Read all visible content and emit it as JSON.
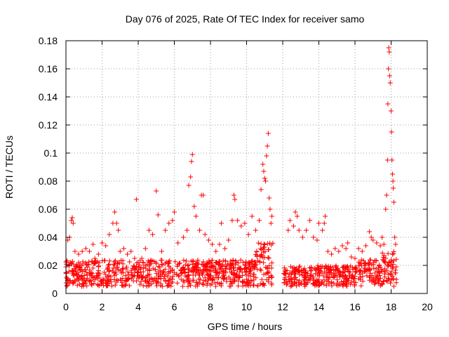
{
  "chart_data": {
    "type": "scatter",
    "title": "Day 076 of 2025, Rate Of TEC Index for receiver samo",
    "xlabel": "GPS time / hours",
    "ylabel": "ROTI / TECUs",
    "xlim": [
      0,
      20
    ],
    "ylim": [
      0,
      0.18
    ],
    "x_ticks": [
      0,
      2,
      4,
      6,
      8,
      10,
      12,
      14,
      16,
      18,
      20
    ],
    "x_tick_labels": [
      "0",
      "2",
      "4",
      "6",
      "8",
      "10",
      "12",
      "14",
      "16",
      "18",
      "20"
    ],
    "y_ticks": [
      0,
      0.02,
      0.04,
      0.06,
      0.08,
      0.1,
      0.12,
      0.14,
      0.16,
      0.18
    ],
    "y_tick_labels": [
      "0",
      "0.02",
      "0.04",
      "0.06",
      "0.08",
      "0.1",
      "0.12",
      "0.14",
      "0.16",
      "0.18"
    ],
    "grid": true,
    "marker": "+",
    "color": "#ff0000",
    "series": [
      {
        "name": "ROTI",
        "points": [
          [
            0.1,
            0.038
          ],
          [
            0.2,
            0.04
          ],
          [
            0.3,
            0.052
          ],
          [
            0.35,
            0.054
          ],
          [
            0.4,
            0.05
          ],
          [
            0.5,
            0.03
          ],
          [
            0.7,
            0.028
          ],
          [
            0.9,
            0.03
          ],
          [
            1.1,
            0.032
          ],
          [
            1.3,
            0.03
          ],
          [
            1.5,
            0.035
          ],
          [
            1.6,
            0.025
          ],
          [
            1.8,
            0.028
          ],
          [
            2.0,
            0.036
          ],
          [
            2.2,
            0.034
          ],
          [
            2.4,
            0.042
          ],
          [
            2.6,
            0.05
          ],
          [
            2.7,
            0.058
          ],
          [
            2.8,
            0.05
          ],
          [
            2.9,
            0.045
          ],
          [
            3.0,
            0.03
          ],
          [
            3.2,
            0.032
          ],
          [
            3.4,
            0.028
          ],
          [
            3.6,
            0.03
          ],
          [
            3.8,
            0.025
          ],
          [
            3.9,
            0.067
          ],
          [
            4.0,
            0.022
          ],
          [
            4.2,
            0.025
          ],
          [
            4.4,
            0.032
          ],
          [
            4.6,
            0.045
          ],
          [
            4.8,
            0.042
          ],
          [
            5.0,
            0.073
          ],
          [
            5.1,
            0.056
          ],
          [
            5.3,
            0.03
          ],
          [
            5.5,
            0.045
          ],
          [
            5.7,
            0.05
          ],
          [
            5.9,
            0.052
          ],
          [
            6.0,
            0.058
          ],
          [
            6.2,
            0.036
          ],
          [
            6.5,
            0.04
          ],
          [
            6.7,
            0.045
          ],
          [
            6.8,
            0.077
          ],
          [
            6.9,
            0.083
          ],
          [
            6.95,
            0.094
          ],
          [
            7.0,
            0.099
          ],
          [
            7.1,
            0.062
          ],
          [
            7.2,
            0.055
          ],
          [
            7.4,
            0.045
          ],
          [
            7.5,
            0.07
          ],
          [
            7.6,
            0.07
          ],
          [
            7.7,
            0.042
          ],
          [
            7.9,
            0.038
          ],
          [
            8.1,
            0.035
          ],
          [
            8.3,
            0.03
          ],
          [
            8.5,
            0.035
          ],
          [
            8.6,
            0.05
          ],
          [
            8.8,
            0.032
          ],
          [
            9.0,
            0.038
          ],
          [
            9.2,
            0.052
          ],
          [
            9.3,
            0.07
          ],
          [
            9.35,
            0.067
          ],
          [
            9.5,
            0.052
          ],
          [
            9.7,
            0.048
          ],
          [
            9.9,
            0.05
          ],
          [
            10.1,
            0.042
          ],
          [
            10.3,
            0.055
          ],
          [
            10.5,
            0.045
          ],
          [
            10.7,
            0.052
          ],
          [
            10.8,
            0.074
          ],
          [
            10.9,
            0.092
          ],
          [
            10.95,
            0.087
          ],
          [
            11.0,
            0.082
          ],
          [
            11.05,
            0.08
          ],
          [
            11.1,
            0.098
          ],
          [
            11.15,
            0.105
          ],
          [
            11.2,
            0.114
          ],
          [
            11.25,
            0.068
          ],
          [
            11.3,
            0.06
          ],
          [
            11.35,
            0.05
          ],
          [
            11.4,
            0.055
          ],
          [
            12.3,
            0.045
          ],
          [
            12.4,
            0.052
          ],
          [
            12.6,
            0.048
          ],
          [
            12.7,
            0.058
          ],
          [
            12.8,
            0.055
          ],
          [
            12.9,
            0.045
          ],
          [
            13.1,
            0.04
          ],
          [
            13.3,
            0.045
          ],
          [
            13.5,
            0.052
          ],
          [
            13.7,
            0.04
          ],
          [
            13.9,
            0.038
          ],
          [
            14.0,
            0.05
          ],
          [
            14.2,
            0.045
          ],
          [
            14.3,
            0.05
          ],
          [
            14.35,
            0.055
          ],
          [
            14.5,
            0.03
          ],
          [
            14.7,
            0.028
          ],
          [
            14.9,
            0.032
          ],
          [
            15.1,
            0.03
          ],
          [
            15.3,
            0.034
          ],
          [
            15.5,
            0.032
          ],
          [
            15.6,
            0.036
          ],
          [
            15.8,
            0.026
          ],
          [
            16.0,
            0.025
          ],
          [
            16.2,
            0.032
          ],
          [
            16.4,
            0.03
          ],
          [
            16.6,
            0.034
          ],
          [
            16.8,
            0.044
          ],
          [
            16.9,
            0.04
          ],
          [
            17.0,
            0.038
          ],
          [
            17.2,
            0.036
          ],
          [
            17.4,
            0.034
          ],
          [
            17.5,
            0.04
          ],
          [
            17.6,
            0.035
          ],
          [
            17.7,
            0.06
          ],
          [
            17.75,
            0.07
          ],
          [
            17.8,
            0.095
          ],
          [
            17.82,
            0.135
          ],
          [
            17.85,
            0.16
          ],
          [
            17.87,
            0.175
          ],
          [
            17.9,
            0.172
          ],
          [
            17.92,
            0.155
          ],
          [
            17.95,
            0.15
          ],
          [
            18.0,
            0.13
          ],
          [
            18.02,
            0.115
          ],
          [
            18.05,
            0.095
          ],
          [
            18.08,
            0.085
          ],
          [
            18.1,
            0.08
          ],
          [
            18.12,
            0.075
          ],
          [
            18.15,
            0.065
          ],
          [
            18.2,
            0.04
          ],
          [
            18.25,
            0.035
          ]
        ]
      }
    ]
  }
}
